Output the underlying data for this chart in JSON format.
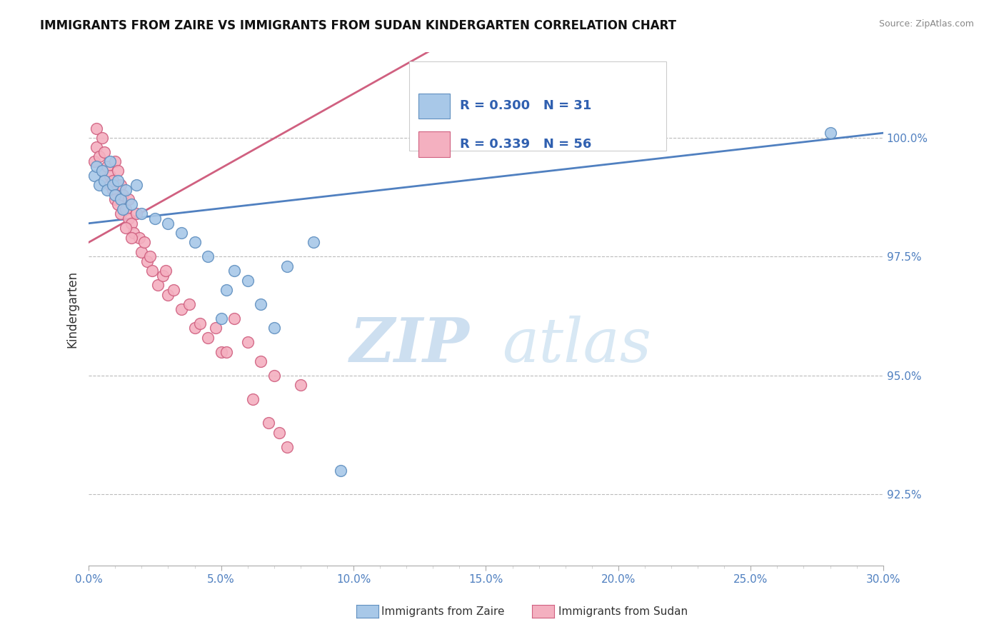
{
  "title": "IMMIGRANTS FROM ZAIRE VS IMMIGRANTS FROM SUDAN KINDERGARTEN CORRELATION CHART",
  "source": "Source: ZipAtlas.com",
  "ylabel": "Kindergarten",
  "xmin": 0.0,
  "xmax": 30.0,
  "ymin": 91.0,
  "ymax": 101.8,
  "right_yticks": [
    92.5,
    95.0,
    97.5,
    100.0
  ],
  "zaire_R": 0.3,
  "zaire_N": 31,
  "sudan_R": 0.339,
  "sudan_N": 56,
  "zaire_color": "#a8c8e8",
  "sudan_color": "#f4b0c0",
  "zaire_edge": "#6090c0",
  "sudan_edge": "#d06080",
  "trend_zaire_color": "#5080c0",
  "trend_sudan_color": "#d06080",
  "watermark_zip": "ZIP",
  "watermark_atlas": "atlas",
  "watermark_color": "#d0e4f4",
  "legend_label_zaire": "Immigrants from Zaire",
  "legend_label_sudan": "Immigrants from Sudan",
  "zaire_x": [
    0.2,
    0.3,
    0.4,
    0.5,
    0.6,
    0.7,
    0.8,
    0.9,
    1.0,
    1.1,
    1.2,
    1.3,
    1.4,
    1.6,
    1.8,
    2.0,
    2.5,
    3.0,
    3.5,
    4.0,
    4.5,
    5.5,
    6.0,
    6.5,
    7.0,
    7.5,
    8.5,
    9.5,
    28.0,
    5.0,
    5.2
  ],
  "zaire_y": [
    99.2,
    99.4,
    99.0,
    99.3,
    99.1,
    98.9,
    99.5,
    99.0,
    98.8,
    99.1,
    98.7,
    98.5,
    98.9,
    98.6,
    99.0,
    98.4,
    98.3,
    98.2,
    98.0,
    97.8,
    97.5,
    97.2,
    97.0,
    96.5,
    96.0,
    97.3,
    97.8,
    93.0,
    100.1,
    96.2,
    96.8
  ],
  "sudan_x": [
    0.2,
    0.3,
    0.3,
    0.4,
    0.5,
    0.5,
    0.6,
    0.6,
    0.7,
    0.8,
    0.8,
    0.9,
    0.9,
    1.0,
    1.0,
    1.1,
    1.1,
    1.2,
    1.2,
    1.3,
    1.4,
    1.5,
    1.5,
    1.6,
    1.7,
    1.8,
    1.9,
    2.0,
    2.1,
    2.2,
    2.4,
    2.6,
    2.8,
    3.0,
    3.5,
    4.0,
    4.5,
    5.0,
    5.5,
    6.0,
    6.5,
    7.0,
    7.5,
    8.0,
    3.8,
    4.2,
    2.3,
    1.4,
    1.6,
    2.9,
    3.2,
    4.8,
    5.2,
    6.2,
    6.8,
    7.2
  ],
  "sudan_y": [
    99.5,
    99.8,
    100.2,
    99.6,
    100.0,
    99.3,
    99.7,
    99.1,
    99.4,
    99.0,
    99.2,
    98.9,
    99.1,
    99.5,
    98.7,
    99.3,
    98.6,
    99.0,
    98.4,
    98.8,
    98.5,
    98.3,
    98.7,
    98.2,
    98.0,
    98.4,
    97.9,
    97.6,
    97.8,
    97.4,
    97.2,
    96.9,
    97.1,
    96.7,
    96.4,
    96.0,
    95.8,
    95.5,
    96.2,
    95.7,
    95.3,
    95.0,
    93.5,
    94.8,
    96.5,
    96.1,
    97.5,
    98.1,
    97.9,
    97.2,
    96.8,
    96.0,
    95.5,
    94.5,
    94.0,
    93.8
  ]
}
